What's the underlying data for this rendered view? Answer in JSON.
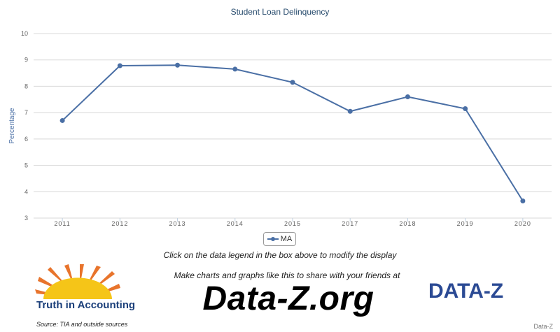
{
  "chart_data": {
    "type": "line",
    "title": "Student Loan Delinquency",
    "xlabel": "",
    "ylabel": "Percentage",
    "categories": [
      "2011",
      "2012",
      "2013",
      "2014",
      "2015",
      "2017",
      "2018",
      "2019",
      "2020"
    ],
    "series": [
      {
        "name": "MA",
        "values": [
          6.7,
          8.78,
          8.8,
          8.65,
          8.15,
          7.05,
          7.6,
          7.15,
          3.65
        ],
        "color": "#4a6fa5"
      }
    ],
    "ylim": [
      3,
      10
    ],
    "yticks": [
      "3",
      "4",
      "5",
      "6",
      "7",
      "8",
      "9",
      "10"
    ],
    "grid": true,
    "legend_position": "bottom-center"
  },
  "legend": {
    "label": "MA"
  },
  "instruction": "Click on the data legend in the box above to modify the display",
  "promo": {
    "share_text": "Make charts and graphs like this to share with your friends at",
    "brand": "Data-Z.org"
  },
  "logos": {
    "tia_text": "Truth in Accounting",
    "dataz": "DATA-Z"
  },
  "source": "Source: TIA and outside sources",
  "credit": "Data-Z",
  "colors": {
    "line": "#4a6fa5",
    "grid": "#d8d8d8",
    "title": "#274b6d",
    "sun": "#f5c518",
    "rays": "#e8742c"
  }
}
